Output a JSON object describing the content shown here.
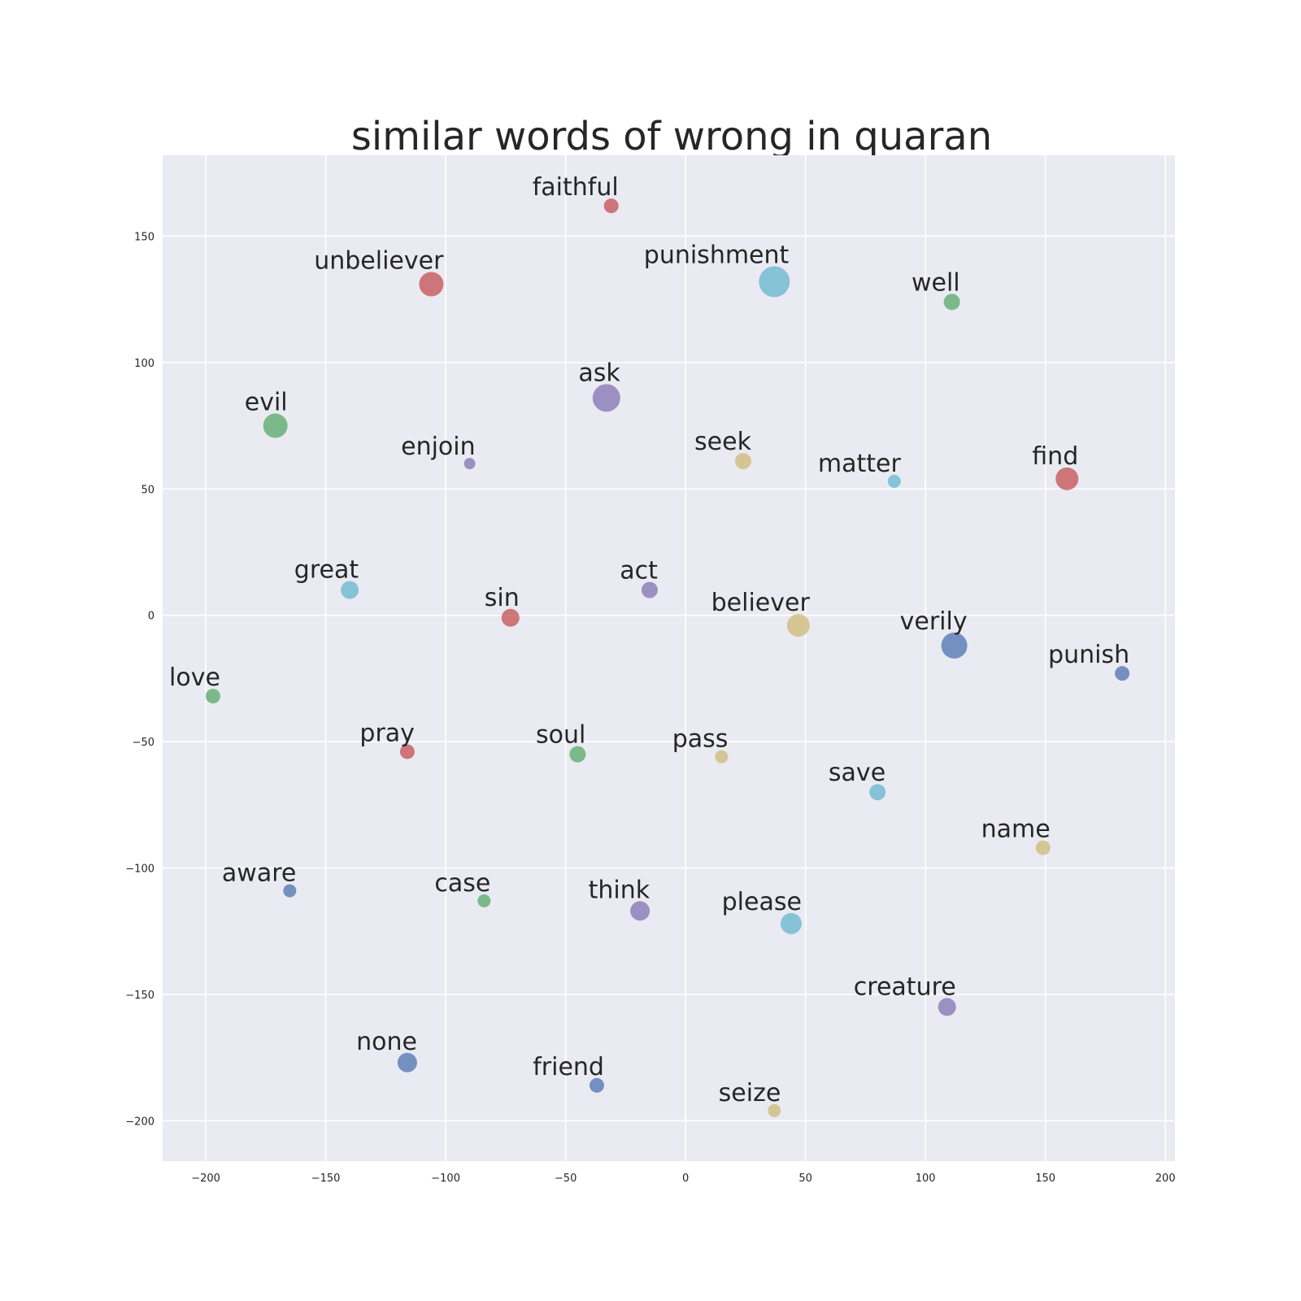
{
  "chart_data": {
    "type": "scatter",
    "title": "similar words of wrong in quaran",
    "xlabel": "",
    "ylabel": "",
    "xlim": [
      -218,
      204
    ],
    "ylim": [
      -216,
      182
    ],
    "xticks": [
      -200,
      -150,
      -100,
      -50,
      0,
      50,
      100,
      150,
      200
    ],
    "yticks": [
      -200,
      -150,
      -100,
      -50,
      0,
      50,
      100,
      150
    ],
    "grid": true,
    "background": "#eaeaf2",
    "palette": {
      "blue": "#4c72b0",
      "green": "#55a868",
      "red": "#c44e52",
      "purple": "#8172b2",
      "yellow": "#ccb974",
      "cyan": "#64b5cd"
    },
    "points": [
      {
        "label": "faithful",
        "x": -31,
        "y": 162,
        "size": 9,
        "color": "red"
      },
      {
        "label": "unbeliever",
        "x": -106,
        "y": 131,
        "size": 15,
        "color": "red"
      },
      {
        "label": "punishment",
        "x": 37,
        "y": 132,
        "size": 19,
        "color": "cyan"
      },
      {
        "label": "well",
        "x": 111,
        "y": 124,
        "size": 10,
        "color": "green"
      },
      {
        "label": "ask",
        "x": -33,
        "y": 86,
        "size": 17,
        "color": "purple"
      },
      {
        "label": "evil",
        "x": -171,
        "y": 75,
        "size": 15,
        "color": "green"
      },
      {
        "label": "enjoin",
        "x": -90,
        "y": 60,
        "size": 7,
        "color": "purple"
      },
      {
        "label": "seek",
        "x": 24,
        "y": 61,
        "size": 10,
        "color": "yellow"
      },
      {
        "label": "matter",
        "x": 87,
        "y": 53,
        "size": 8,
        "color": "cyan"
      },
      {
        "label": "find",
        "x": 159,
        "y": 54,
        "size": 14,
        "color": "red"
      },
      {
        "label": "great",
        "x": -140,
        "y": 10,
        "size": 11,
        "color": "cyan"
      },
      {
        "label": "act",
        "x": -15,
        "y": 10,
        "size": 10,
        "color": "purple"
      },
      {
        "label": "sin",
        "x": -73,
        "y": -1,
        "size": 11,
        "color": "red"
      },
      {
        "label": "believer",
        "x": 47,
        "y": -4,
        "size": 14,
        "color": "yellow"
      },
      {
        "label": "verily",
        "x": 112,
        "y": -12,
        "size": 16,
        "color": "blue"
      },
      {
        "label": "punish",
        "x": 182,
        "y": -23,
        "size": 9,
        "color": "blue"
      },
      {
        "label": "love",
        "x": -197,
        "y": -32,
        "size": 9,
        "color": "green"
      },
      {
        "label": "pray",
        "x": -116,
        "y": -54,
        "size": 9,
        "color": "red"
      },
      {
        "label": "soul",
        "x": -45,
        "y": -55,
        "size": 10,
        "color": "green"
      },
      {
        "label": "pass",
        "x": 15,
        "y": -56,
        "size": 8,
        "color": "yellow"
      },
      {
        "label": "save",
        "x": 80,
        "y": -70,
        "size": 10,
        "color": "cyan"
      },
      {
        "label": "name",
        "x": 149,
        "y": -92,
        "size": 9,
        "color": "yellow"
      },
      {
        "label": "aware",
        "x": -165,
        "y": -109,
        "size": 8,
        "color": "blue"
      },
      {
        "label": "case",
        "x": -84,
        "y": -113,
        "size": 8,
        "color": "green"
      },
      {
        "label": "think",
        "x": -19,
        "y": -117,
        "size": 12,
        "color": "purple"
      },
      {
        "label": "please",
        "x": 44,
        "y": -122,
        "size": 13,
        "color": "cyan"
      },
      {
        "label": "creature",
        "x": 109,
        "y": -155,
        "size": 11,
        "color": "purple"
      },
      {
        "label": "none",
        "x": -116,
        "y": -177,
        "size": 12,
        "color": "blue"
      },
      {
        "label": "friend",
        "x": -37,
        "y": -186,
        "size": 9,
        "color": "blue"
      },
      {
        "label": "seize",
        "x": 37,
        "y": -196,
        "size": 8,
        "color": "yellow"
      }
    ]
  }
}
